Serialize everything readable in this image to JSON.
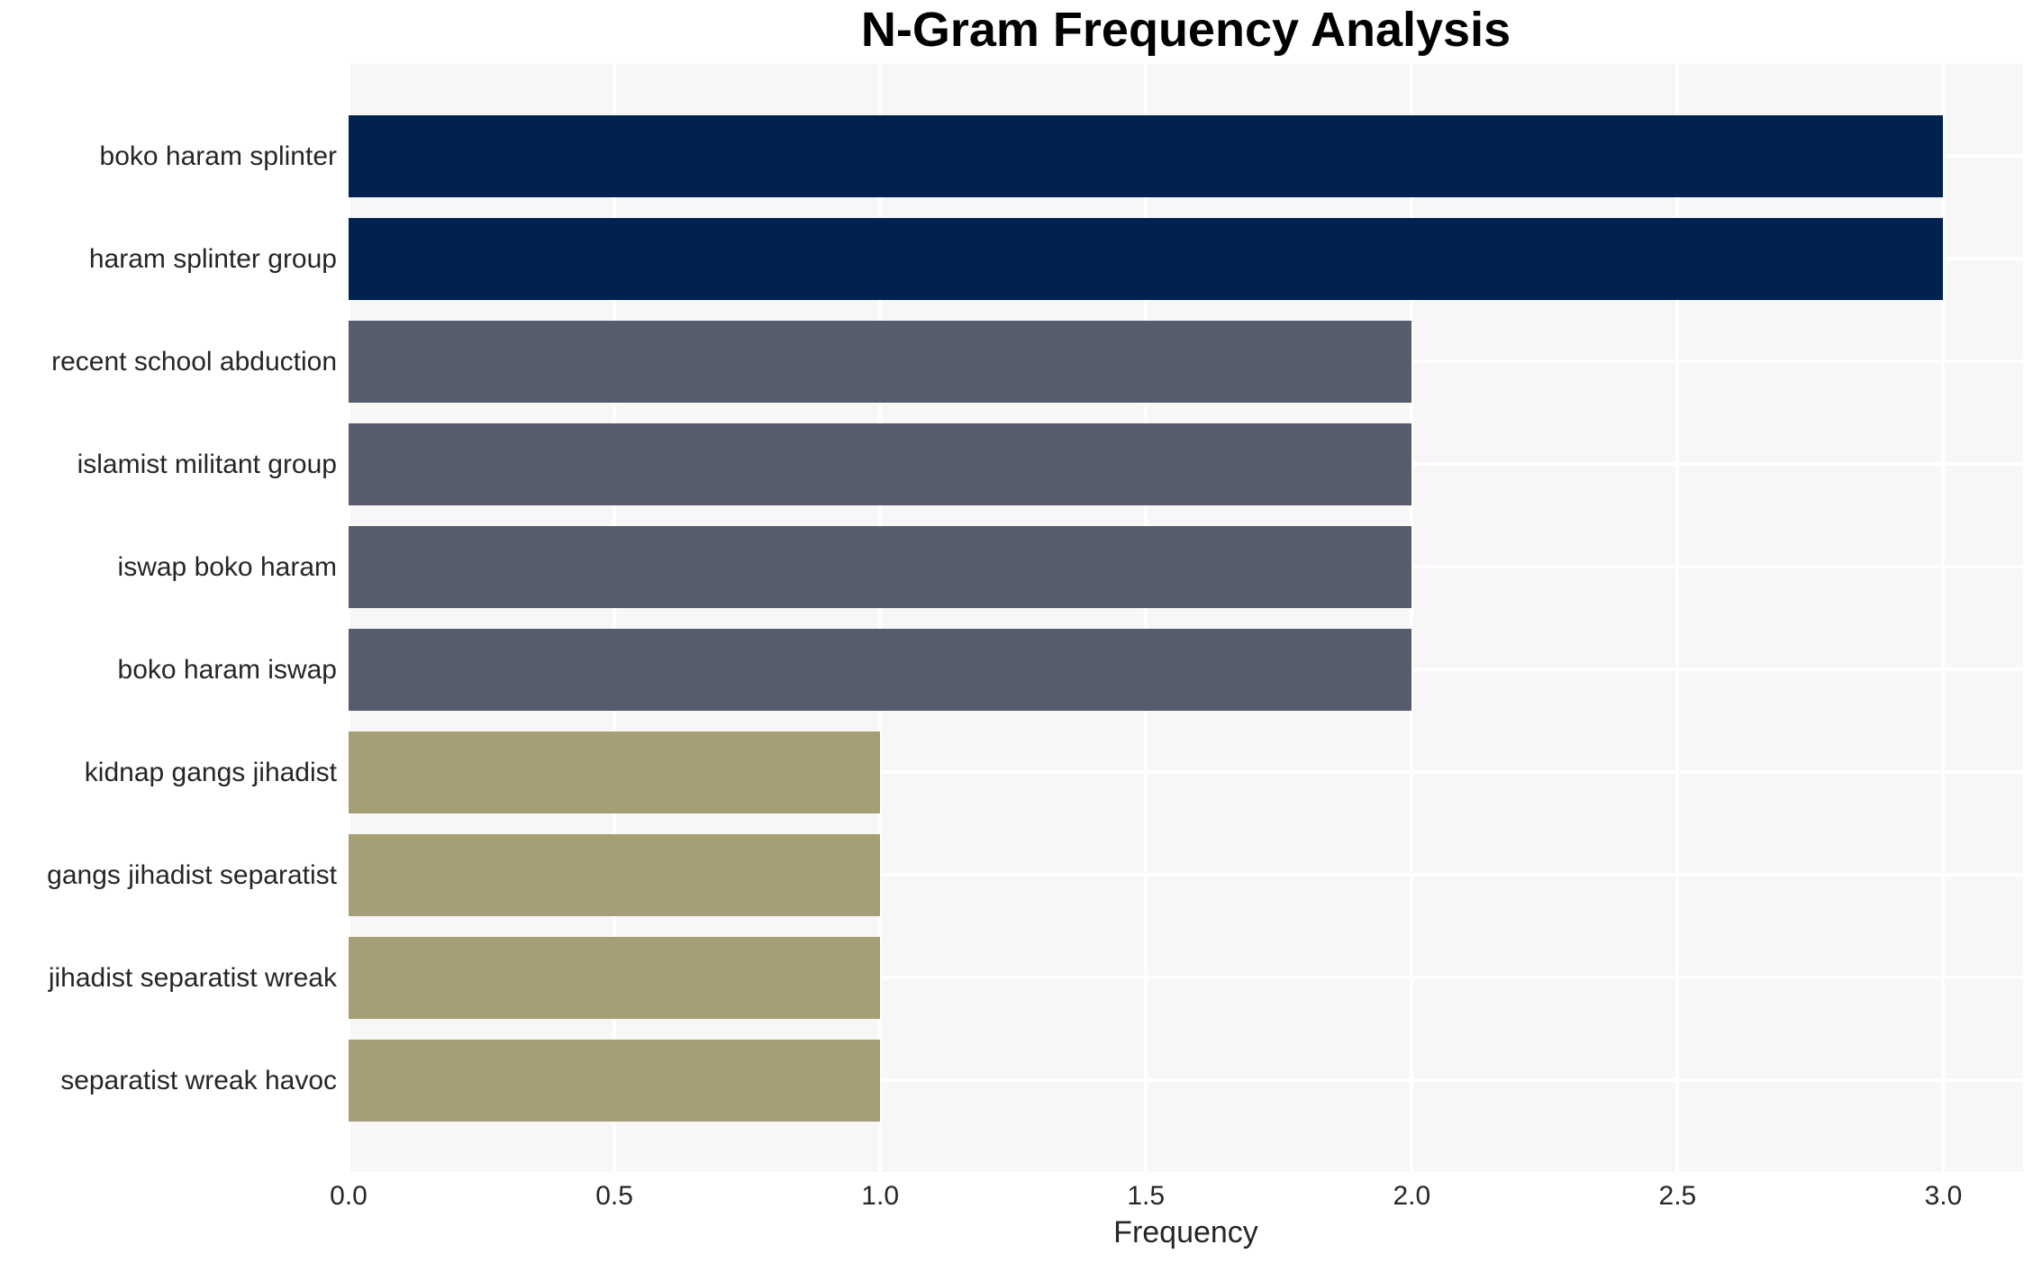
{
  "chart_data": {
    "type": "bar",
    "orientation": "horizontal",
    "title": "N-Gram Frequency Analysis",
    "xlabel": "Frequency",
    "ylabel": "",
    "categories": [
      "boko haram splinter",
      "haram splinter group",
      "recent school abduction",
      "islamist militant group",
      "iswap boko haram",
      "boko haram iswap",
      "kidnap gangs jihadist",
      "gangs jihadist separatist",
      "jihadist separatist wreak",
      "separatist wreak havoc"
    ],
    "values": [
      3,
      3,
      2,
      2,
      2,
      2,
      1,
      1,
      1,
      1
    ],
    "bar_colors": [
      "#01224e",
      "#01224e",
      "#565c6b",
      "#565c6b",
      "#565c6b",
      "#565c6b",
      "#a69e74",
      "#a69e74",
      "#a69e74",
      "#a69e74"
    ],
    "xlim": [
      0,
      3.15
    ],
    "xticks": [
      0,
      0.5,
      1,
      1.5,
      2,
      2.5,
      3
    ],
    "xtick_labels": [
      "0.0",
      "0.5",
      "1.0",
      "1.5",
      "2.0",
      "2.5",
      "3.0"
    ],
    "grid": true,
    "legend": false,
    "colors": {
      "figure_background": "#ffffff",
      "plot_background": "#f7f7f7",
      "gridline": "#ffffff",
      "text": "#262626",
      "title_text": "#000000"
    }
  }
}
